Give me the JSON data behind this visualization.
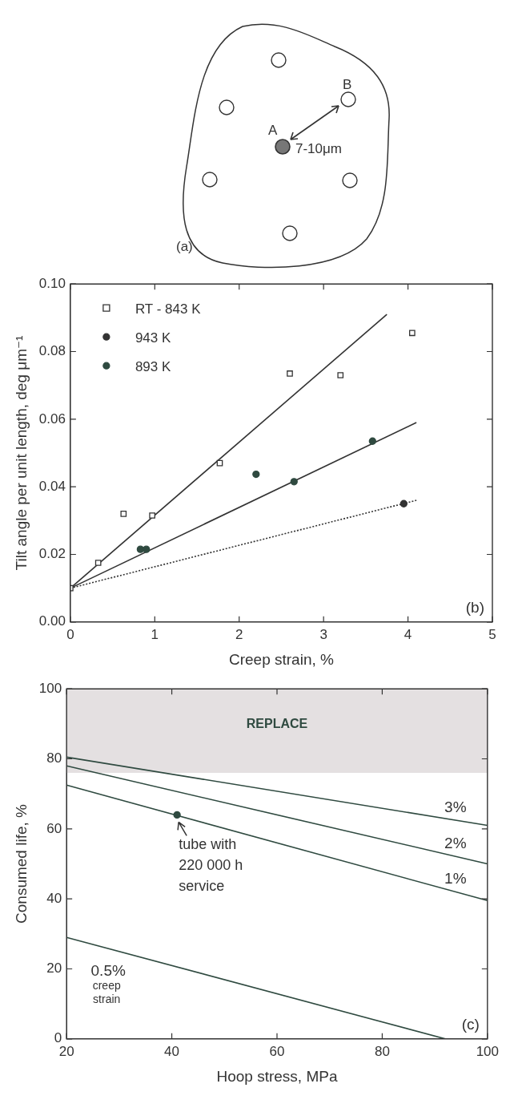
{
  "chart_data": [
    {
      "type": "other",
      "annotations": [
        "A",
        "B",
        "7-10μm",
        "(a)"
      ]
    },
    {
      "type": "scatter",
      "xlabel": "Creep strain, %",
      "ylabel": "Tilt angle per unit length, deg μm⁻¹",
      "xlim": [
        0,
        5
      ],
      "xticks": [
        0,
        1,
        2,
        3,
        4,
        5
      ],
      "ylim": [
        0,
        0.1
      ],
      "yticks": [
        {
          "value": 0,
          "label": "0.00"
        },
        {
          "value": 0.02,
          "label": "0.02"
        },
        {
          "value": 0.04,
          "label": "0.04"
        },
        {
          "value": 0.06,
          "label": "0.06"
        },
        {
          "value": 0.08,
          "label": "0.08"
        },
        {
          "value": 0.1,
          "label": "0.10"
        }
      ],
      "grid": false,
      "legend": "top left",
      "annotations": [
        "(b)"
      ],
      "series": [
        {
          "name": "RT - 843 K",
          "type": "scatter",
          "marker": "square",
          "color": "#333333",
          "x": [
            0,
            0.33,
            0.63,
            0.97,
            1.77,
            2.6,
            3.2,
            4.05
          ],
          "values": [
            0.01,
            0.0175,
            0.032,
            0.0315,
            0.047,
            0.0735,
            0.073,
            0.0855
          ]
        },
        {
          "name": "943 K",
          "type": "scatter",
          "marker": "circle",
          "color": "#333333",
          "x": [
            3.95
          ],
          "values": [
            0.035
          ]
        },
        {
          "name": "893 K",
          "type": "scatter",
          "marker": "circle",
          "color": "#2f4a40",
          "x": [
            0.83,
            0.9,
            2.2,
            2.65,
            3.58
          ],
          "values": [
            0.0215,
            0.0215,
            0.0437,
            0.0415,
            0.0535
          ]
        },
        {
          "type": "line",
          "marker": "none",
          "line_style": "solid",
          "color": "#333333",
          "x": [
            0,
            3.75
          ],
          "values": [
            0.01,
            0.091
          ]
        },
        {
          "type": "line",
          "marker": "none",
          "line_style": "solid",
          "color": "#333333",
          "x": [
            0,
            4.1
          ],
          "values": [
            0.01,
            0.059
          ]
        },
        {
          "type": "line",
          "marker": "none",
          "line_style": "dotted",
          "color": "#333333",
          "x": [
            0,
            4.1
          ],
          "values": [
            0.01,
            0.036
          ]
        }
      ]
    },
    {
      "type": "line",
      "xlabel": "Hoop stress, MPa",
      "ylabel": "Consumed life, %",
      "xlim": [
        20,
        100
      ],
      "xticks": [
        20,
        40,
        60,
        80,
        100
      ],
      "ylim": [
        0,
        100
      ],
      "yticks": [
        0,
        20,
        40,
        60,
        80,
        100
      ],
      "grid": false,
      "legend": false,
      "bands": [
        {
          "axis": "y",
          "from": 76,
          "to": 100,
          "label": "REPLACE",
          "color": "#e4e0e1"
        }
      ],
      "annotations": [
        {
          "text": "tube with 220 000 h service",
          "x": 41,
          "y": 64
        },
        "creep strain",
        "(c)"
      ],
      "series": [
        {
          "name": "3%",
          "type": "line",
          "marker": "none",
          "color": "#2f4a40",
          "x": [
            20,
            100
          ],
          "values": [
            80.5,
            61
          ]
        },
        {
          "name": "2%",
          "type": "line",
          "marker": "none",
          "color": "#2f4a40",
          "x": [
            20,
            100
          ],
          "values": [
            78,
            50
          ]
        },
        {
          "name": "1%",
          "type": "line",
          "marker": "none",
          "color": "#2f4a40",
          "x": [
            20,
            100
          ],
          "values": [
            72.5,
            39.5
          ]
        },
        {
          "name": "0.5%",
          "type": "line",
          "marker": "none",
          "color": "#2f4a40",
          "x": [
            20,
            92
          ],
          "values": [
            29,
            0
          ]
        },
        {
          "type": "scatter",
          "marker": "circle",
          "color": "#2f4a40",
          "x": [
            41
          ],
          "values": [
            64
          ]
        }
      ]
    }
  ]
}
